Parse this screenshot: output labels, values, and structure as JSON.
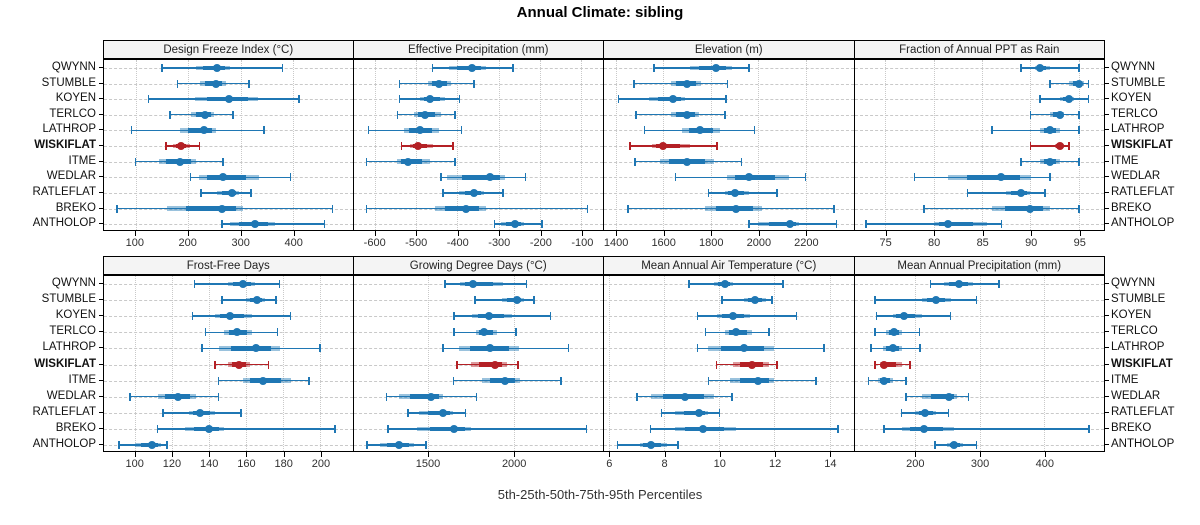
{
  "title": "Annual Climate: sibling",
  "caption": "5th-25th-50th-75th-95th Percentiles",
  "colors": {
    "series": "#1F77B4",
    "highlight": "#B42025",
    "header_bg": "#F4F4F4",
    "panel_border": "#000000",
    "grid": "#C9C9C9"
  },
  "chart_data": {
    "type": "dot-whisker-percentile-trellis",
    "percentiles": [
      5,
      25,
      50,
      75,
      95
    ],
    "legend_position": "none",
    "grid": "dotted",
    "sites": [
      "QWYNN",
      "STUMBLE",
      "KOYEN",
      "TERLCO",
      "LATHROP",
      "WISKIFLAT",
      "ITME",
      "WEDLAR",
      "RATLEFLAT",
      "BREKO",
      "ANTHOLOP"
    ],
    "highlight_site": "WISKIFLAT",
    "panels": [
      {
        "title": "Design Freeze Index (°C)",
        "row": 0,
        "xlim": [
          40,
          513
        ],
        "ticks": [
          100,
          200,
          300,
          400
        ],
        "values": [
          [
            150,
            215,
            255,
            280,
            380
          ],
          [
            180,
            222,
            253,
            272,
            316
          ],
          [
            125,
            213,
            278,
            334,
            411
          ],
          [
            166,
            206,
            233,
            250,
            286
          ],
          [
            92,
            184,
            230,
            254,
            345
          ],
          [
            158,
            172,
            186,
            203,
            222
          ],
          [
            100,
            144,
            184,
            216,
            267
          ],
          [
            205,
            220,
            267,
            335,
            395
          ],
          [
            225,
            255,
            283,
            297,
            320
          ],
          [
            65,
            160,
            265,
            305,
            475
          ],
          [
            265,
            280,
            328,
            365,
            460
          ]
        ]
      },
      {
        "title": "Effective Precipitation (mm)",
        "row": 0,
        "xlim": [
          -651,
          -48
        ],
        "ticks": [
          -600,
          -500,
          -400,
          -300,
          -200,
          -100
        ],
        "values": [
          [
            -460,
            -420,
            -365,
            -330,
            -265
          ],
          [
            -540,
            -470,
            -445,
            -415,
            -360
          ],
          [
            -540,
            -490,
            -465,
            -430,
            -395
          ],
          [
            -545,
            -505,
            -478,
            -440,
            -405
          ],
          [
            -615,
            -530,
            -490,
            -445,
            -390
          ],
          [
            -535,
            -515,
            -495,
            -460,
            -410
          ],
          [
            -620,
            -545,
            -520,
            -465,
            -405
          ],
          [
            -440,
            -425,
            -320,
            -285,
            -235
          ],
          [
            -435,
            -395,
            -360,
            -335,
            -290
          ],
          [
            -620,
            -455,
            -380,
            -330,
            -85
          ],
          [
            -310,
            -295,
            -260,
            -240,
            -195
          ]
        ]
      },
      {
        "title": "Elevation (m)",
        "row": 0,
        "xlim": [
          1349,
          2402
        ],
        "ticks": [
          1400,
          1600,
          1800,
          2000,
          2200
        ],
        "values": [
          [
            1560,
            1710,
            1820,
            1890,
            1960
          ],
          [
            1475,
            1630,
            1700,
            1760,
            1870
          ],
          [
            1410,
            1540,
            1640,
            1690,
            1865
          ],
          [
            1485,
            1630,
            1700,
            1750,
            1860
          ],
          [
            1520,
            1680,
            1755,
            1840,
            1985
          ],
          [
            1460,
            1550,
            1600,
            1710,
            1825
          ],
          [
            1480,
            1585,
            1700,
            1815,
            1930
          ],
          [
            1650,
            1870,
            1960,
            2130,
            2200
          ],
          [
            1790,
            1860,
            1900,
            1960,
            2080
          ],
          [
            1450,
            1775,
            1905,
            2015,
            2320
          ],
          [
            1960,
            2000,
            2135,
            2170,
            2330
          ]
        ]
      },
      {
        "title": "Fraction of Annual PPT as Rain",
        "row": 0,
        "xlim": [
          71.8,
          97.6
        ],
        "ticks": [
          75,
          80,
          85,
          90,
          95
        ],
        "values": [
          [
            89,
            90.5,
            91,
            92,
            95
          ],
          [
            92,
            94,
            95,
            95.5,
            96
          ],
          [
            91,
            93,
            94,
            94.5,
            96
          ],
          [
            90,
            92,
            93,
            93.5,
            95
          ],
          [
            86,
            91,
            92,
            93,
            95
          ],
          [
            90,
            92.5,
            93,
            93.5,
            94
          ],
          [
            89,
            91,
            92,
            93,
            95
          ],
          [
            78,
            81.5,
            87,
            90,
            92
          ],
          [
            83.5,
            87.5,
            89,
            90,
            91.5
          ],
          [
            79,
            86,
            90,
            92,
            95
          ],
          [
            73,
            80,
            81.5,
            85.5,
            87
          ]
        ]
      },
      {
        "title": "Frost-Free Days",
        "row": 1,
        "xlim": [
          83,
          217.5
        ],
        "ticks": [
          100,
          120,
          140,
          160,
          180,
          200
        ],
        "values": [
          [
            132,
            150,
            158,
            165,
            178
          ],
          [
            147,
            160,
            166,
            170,
            176
          ],
          [
            131,
            143,
            151,
            163,
            184
          ],
          [
            138,
            148,
            155,
            163,
            177
          ],
          [
            136,
            145,
            165,
            178,
            200
          ],
          [
            143,
            150,
            156,
            162,
            172
          ],
          [
            145,
            158,
            169,
            184,
            194
          ],
          [
            97,
            112,
            123,
            133,
            145
          ],
          [
            115,
            129,
            135,
            143,
            157
          ],
          [
            112,
            127,
            140,
            148,
            208
          ],
          [
            91,
            100,
            109,
            114,
            117
          ]
        ]
      },
      {
        "title": "Growing Degree Days (°C)",
        "row": 1,
        "xlim": [
          1068,
          2521
        ],
        "ticks": [
          1500,
          2000
        ],
        "values": [
          [
            1600,
            1690,
            1765,
            1940,
            2075
          ],
          [
            1775,
            1930,
            2020,
            2060,
            2120
          ],
          [
            1655,
            1760,
            1855,
            1990,
            2215
          ],
          [
            1655,
            1780,
            1830,
            1905,
            2015
          ],
          [
            1590,
            1680,
            1865,
            2030,
            2320
          ],
          [
            1670,
            1750,
            1890,
            1960,
            2025
          ],
          [
            1650,
            1815,
            1950,
            2040,
            2275
          ],
          [
            1260,
            1335,
            1520,
            1590,
            1785
          ],
          [
            1385,
            1450,
            1590,
            1650,
            1720
          ],
          [
            1270,
            1440,
            1655,
            1755,
            2425
          ],
          [
            1145,
            1220,
            1335,
            1420,
            1490
          ]
        ]
      },
      {
        "title": "Mean Annual Air Temperature (°C)",
        "row": 1,
        "xlim": [
          5.81,
          14.87
        ],
        "ticks": [
          6,
          8,
          10,
          12,
          14
        ],
        "values": [
          [
            8.9,
            9.8,
            10.2,
            10.5,
            12.3
          ],
          [
            10.1,
            10.9,
            11.3,
            11.7,
            11.9
          ],
          [
            9.2,
            9.9,
            10.5,
            11.1,
            12.8
          ],
          [
            9.5,
            10.2,
            10.6,
            11.2,
            11.8
          ],
          [
            9.2,
            9.6,
            10.9,
            12.0,
            13.8
          ],
          [
            9.9,
            10.5,
            11.2,
            11.8,
            12.1
          ],
          [
            9.6,
            10.4,
            11.4,
            12.0,
            13.5
          ],
          [
            7.0,
            7.5,
            8.75,
            9.8,
            10.45
          ],
          [
            7.9,
            8.4,
            9.25,
            9.6,
            10.0
          ],
          [
            7.5,
            8.4,
            9.4,
            10.6,
            14.3
          ],
          [
            6.3,
            7.1,
            7.5,
            8.1,
            8.5
          ]
        ]
      },
      {
        "title": "Mean Annual Precipitation (mm)",
        "row": 1,
        "xlim": [
          106,
          493
        ],
        "ticks": [
          200,
          300,
          400
        ],
        "values": [
          [
            224,
            245,
            268,
            290,
            330
          ],
          [
            138,
            210,
            232,
            255,
            295
          ],
          [
            140,
            165,
            182,
            210,
            255
          ],
          [
            138,
            155,
            168,
            180,
            207
          ],
          [
            132,
            150,
            165,
            180,
            208
          ],
          [
            138,
            145,
            151,
            180,
            192
          ],
          [
            128,
            142,
            152,
            165,
            186
          ],
          [
            186,
            210,
            253,
            265,
            283
          ],
          [
            179,
            200,
            216,
            233,
            252
          ],
          [
            152,
            180,
            214,
            260,
            470
          ],
          [
            231,
            250,
            260,
            275,
            295
          ]
        ]
      }
    ]
  }
}
